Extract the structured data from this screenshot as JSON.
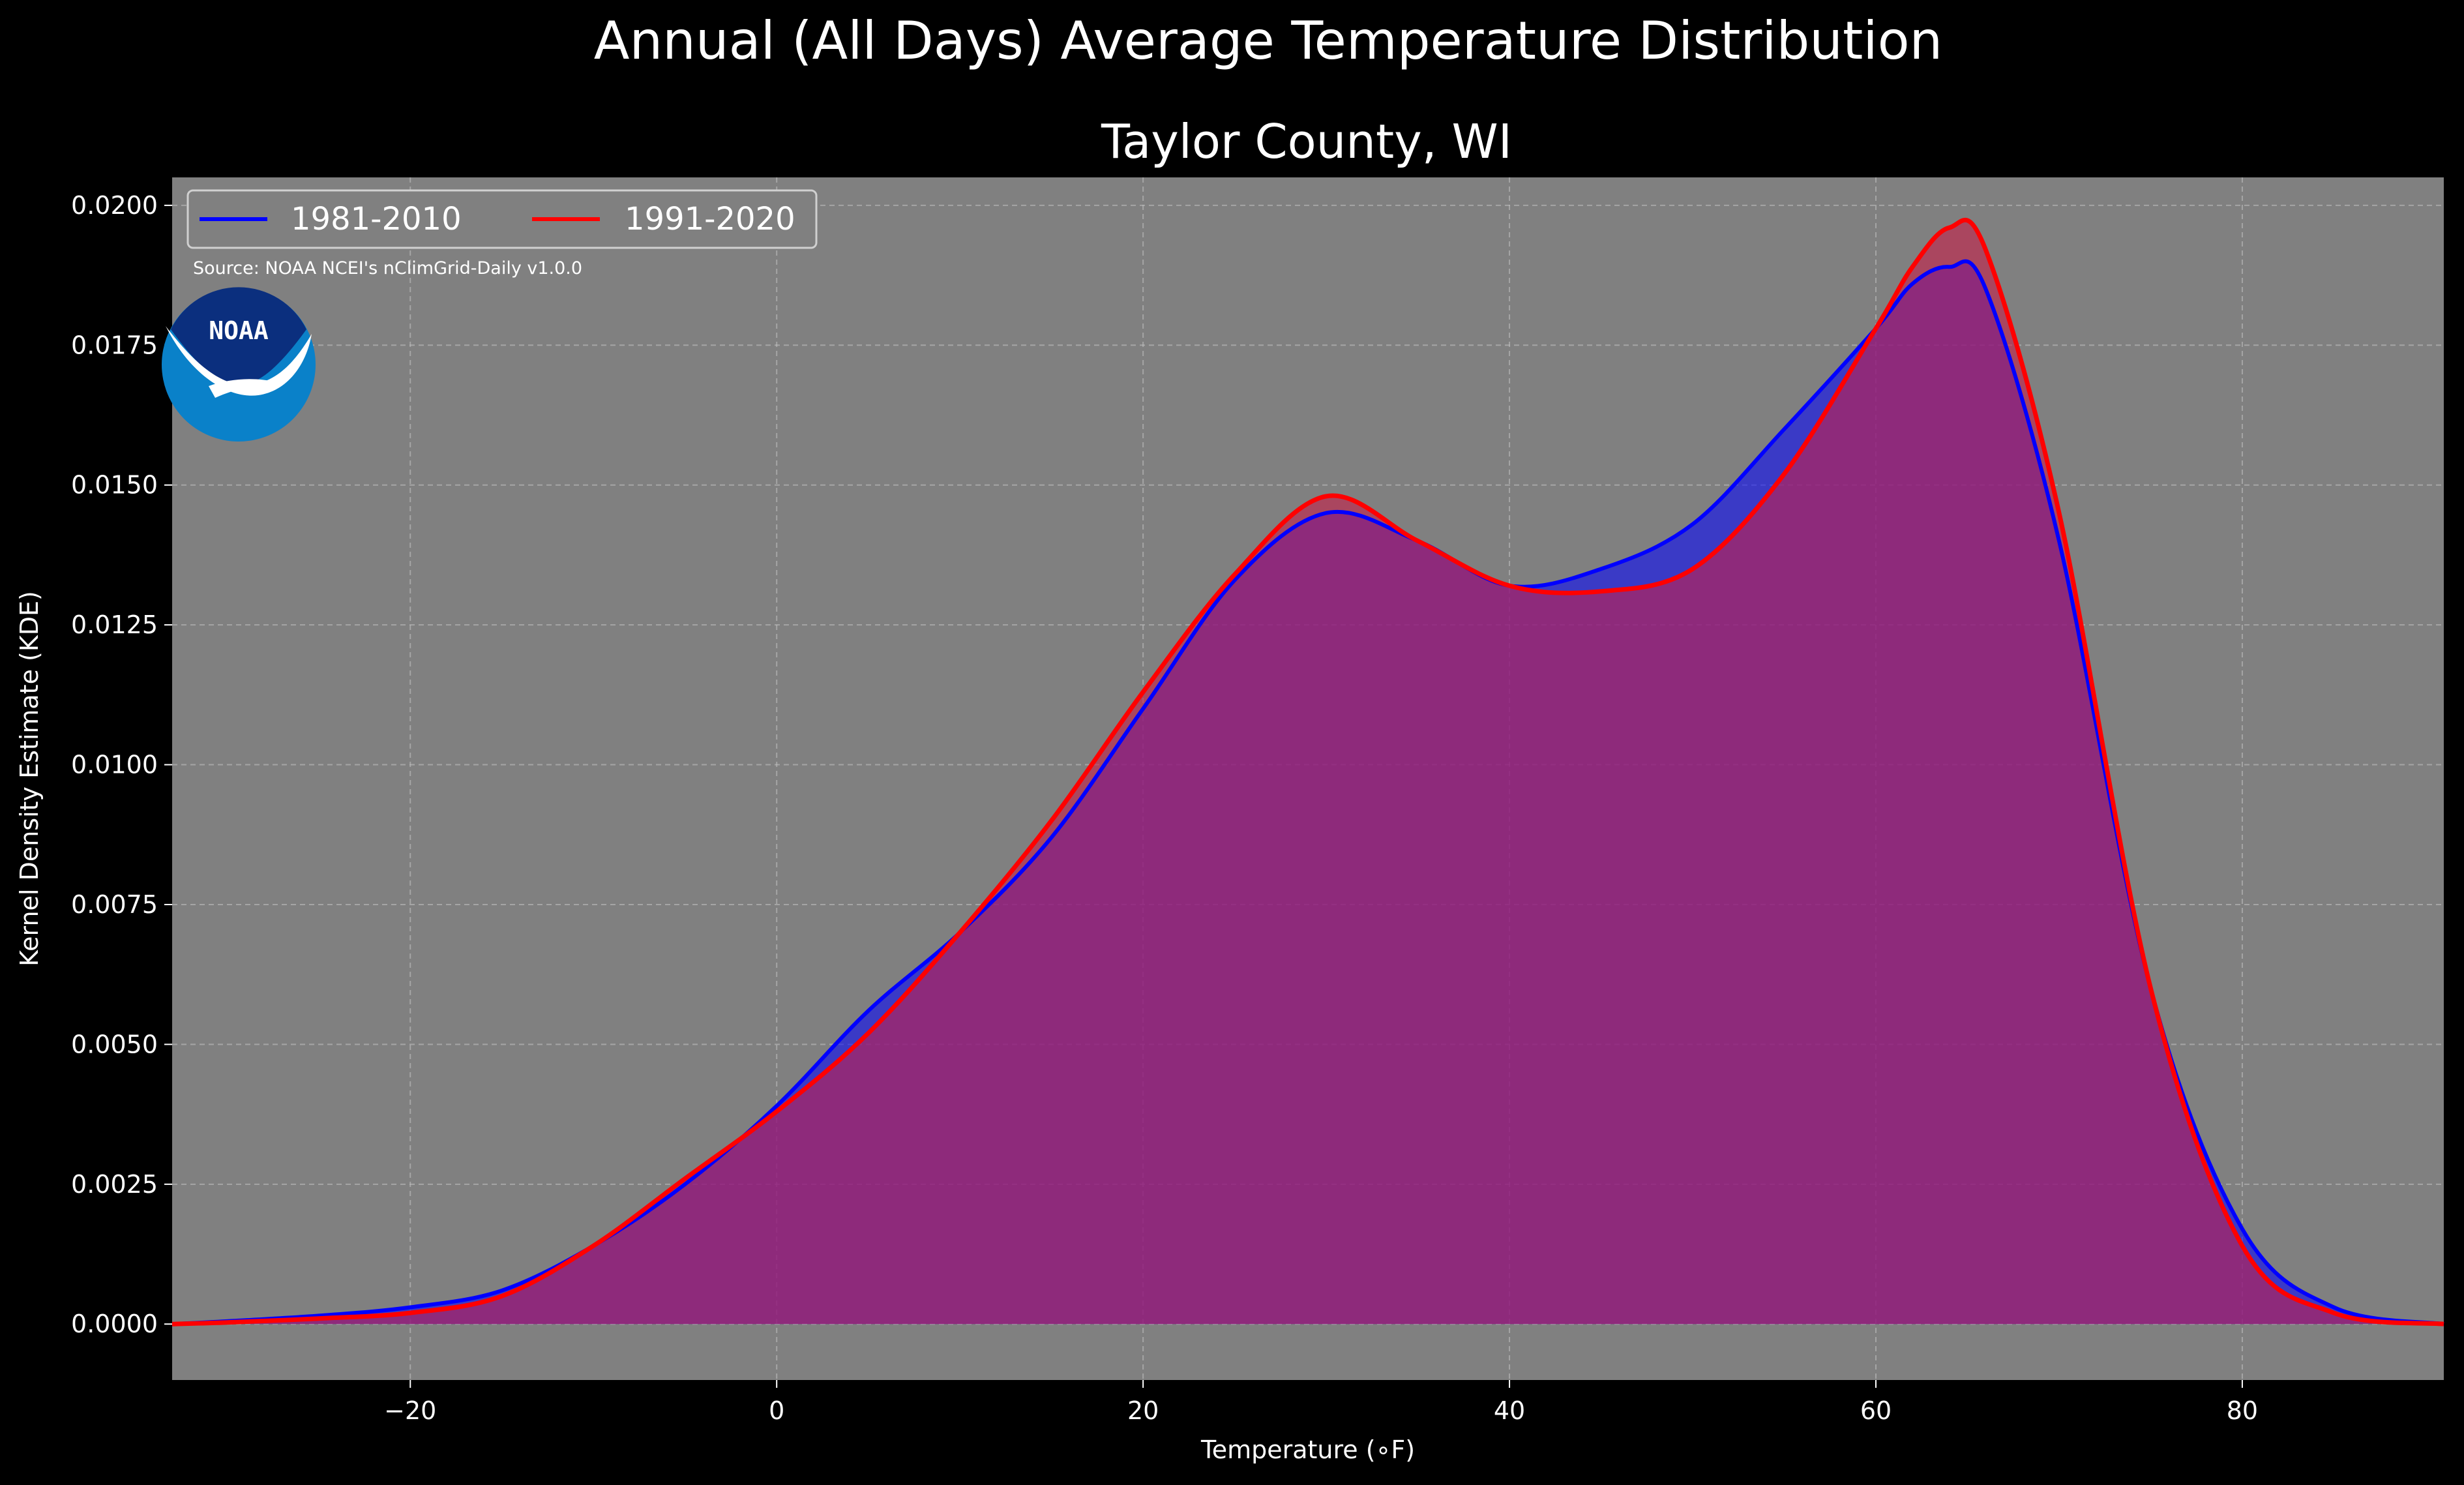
{
  "chart_data": {
    "type": "area",
    "suptitle": "Annual (All Days) Average Temperature Distribution",
    "title": "Taylor County, WI",
    "xlabel": "Temperature (∘F)",
    "ylabel": "Kernel Density Estimate (KDE)",
    "xlim": [
      -33,
      91
    ],
    "ylim": [
      -0.001,
      0.0205
    ],
    "xticks": [
      -20,
      0,
      20,
      40,
      60,
      80
    ],
    "xtick_labels": [
      "−20",
      "0",
      "20",
      "40",
      "60",
      "80"
    ],
    "yticks": [
      0.0,
      0.0025,
      0.005,
      0.0075,
      0.01,
      0.0125,
      0.015,
      0.0175,
      0.02
    ],
    "ytick_labels": [
      "0.0000",
      "0.0025",
      "0.0050",
      "0.0075",
      "0.0100",
      "0.0125",
      "0.0150",
      "0.0175",
      "0.0200"
    ],
    "grid": true,
    "legend_position": "top-left",
    "source_note": "Source: NOAA NCEI's nClimGrid-Daily v1.0.0",
    "logo_text": "NOAA",
    "background": "#808080",
    "series": [
      {
        "name": "1981-2010",
        "color": "#0000ff",
        "fill": "#0000ff",
        "x": [
          -33,
          -30,
          -25,
          -20,
          -15,
          -10,
          -5,
          0,
          5,
          10,
          15,
          20,
          25,
          30,
          35,
          40,
          45,
          50,
          55,
          60,
          62,
          64,
          66,
          70,
          75,
          80,
          85,
          91
        ],
        "y": [
          0.0,
          5e-05,
          0.00015,
          0.0003,
          0.0006,
          0.0014,
          0.0025,
          0.0039,
          0.0056,
          0.007,
          0.0087,
          0.011,
          0.0133,
          0.0145,
          0.014,
          0.0132,
          0.0135,
          0.0143,
          0.016,
          0.0178,
          0.0186,
          0.0189,
          0.0185,
          0.014,
          0.006,
          0.0017,
          0.0003,
          0.0
        ]
      },
      {
        "name": "1991-2020",
        "color": "#ff0000",
        "fill": "#c71f4a",
        "x": [
          -33,
          -30,
          -25,
          -20,
          -15,
          -10,
          -5,
          0,
          5,
          10,
          15,
          20,
          25,
          30,
          35,
          40,
          45,
          50,
          55,
          60,
          62,
          64,
          66,
          70,
          75,
          80,
          85,
          91
        ],
        "y": [
          0.0,
          3e-05,
          0.0001,
          0.0002,
          0.0005,
          0.0014,
          0.0026,
          0.0038,
          0.0052,
          0.007,
          0.009,
          0.0113,
          0.0134,
          0.0148,
          0.014,
          0.0132,
          0.0131,
          0.0135,
          0.0152,
          0.0178,
          0.0189,
          0.0196,
          0.0192,
          0.0145,
          0.006,
          0.0014,
          0.0002,
          0.0
        ]
      }
    ]
  }
}
